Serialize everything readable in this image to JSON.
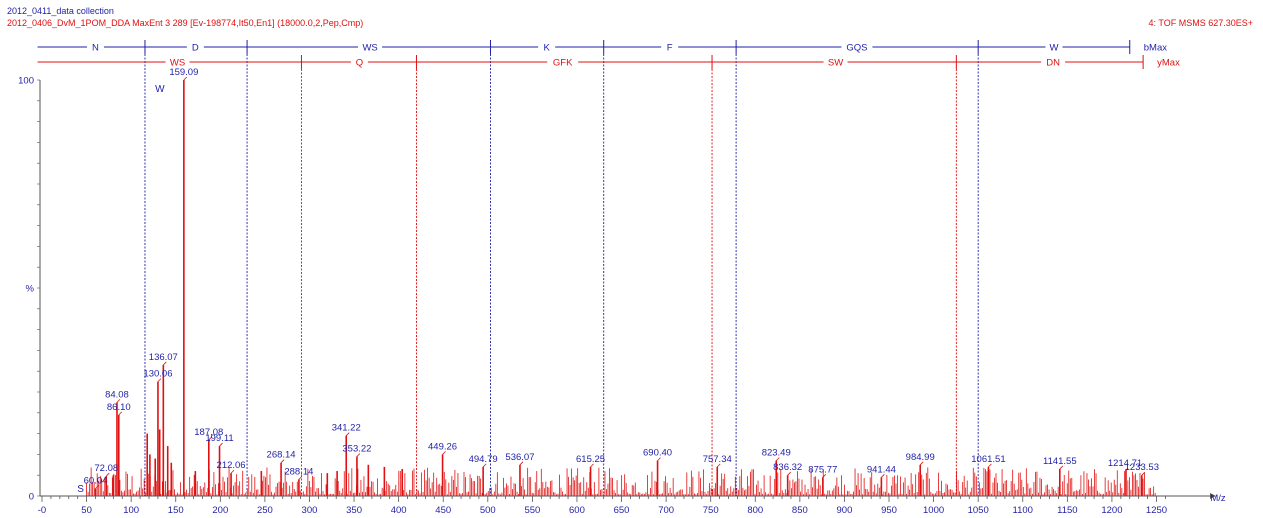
{
  "header": {
    "line1": "2012_0411_data collection",
    "line2": "2012_0406_DvM_1POM_DDA    MaxEnt 3  289 [Ev-198774,It50,En1] (18000.0,2,Pep,Cmp)",
    "right": "4: TOF MSMS 627.30ES+"
  },
  "colors": {
    "blue": "#1f1fa8",
    "red": "#e01010",
    "axis": "#555555"
  },
  "chart_data": {
    "type": "bar",
    "title": "",
    "xlabel": "M/z",
    "ylabel": "%",
    "xlim": [
      -5,
      1265
    ],
    "ylim": [
      0,
      100
    ],
    "x_ticks": [
      0,
      50,
      100,
      150,
      200,
      250,
      300,
      350,
      400,
      450,
      500,
      550,
      600,
      650,
      700,
      750,
      800,
      850,
      900,
      950,
      1000,
      1050,
      1100,
      1150,
      1200,
      1250
    ],
    "x_tick_labels": [
      "-0",
      "50",
      "100",
      "150",
      "200",
      "250",
      "300",
      "350",
      "400",
      "450",
      "500",
      "550",
      "600",
      "650",
      "700",
      "750",
      "800",
      "850",
      "900",
      "950",
      "1000",
      "1050",
      "1100",
      "1150",
      "1200",
      "1250"
    ],
    "y_ticks": [
      0,
      50,
      100
    ],
    "y_tick_labels": [
      "0",
      "%",
      "100"
    ],
    "b_series": {
      "name": "bMax",
      "fragment_mz": [
        115.5,
        230,
        503,
        630,
        778.5,
        1050
      ],
      "end_mz": [
        -5,
        1220
      ],
      "segment_labels": [
        {
          "text": "N",
          "mz": 60
        },
        {
          "text": "D",
          "mz": 172
        },
        {
          "text": "WS",
          "mz": 368
        },
        {
          "text": "K",
          "mz": 566
        },
        {
          "text": "F",
          "mz": 704
        },
        {
          "text": "GQS",
          "mz": 914
        },
        {
          "text": "W",
          "mz": 1135
        }
      ]
    },
    "y_series": {
      "name": "yMax",
      "fragment_mz": [
        291,
        420,
        751.5,
        1025.5
      ],
      "end_mz": [
        -5,
        1235
      ],
      "segment_labels": [
        {
          "text": "WS",
          "mz": 152
        },
        {
          "text": "Q",
          "mz": 356
        },
        {
          "text": "GFK",
          "mz": 584
        },
        {
          "text": "SW",
          "mz": 890
        },
        {
          "text": "DN",
          "mz": 1134
        }
      ]
    },
    "peaks": [
      {
        "mz": 60.04,
        "intensity": 1.8,
        "label": "60.04"
      },
      {
        "mz": 72.08,
        "intensity": 4.8,
        "label": "72.08"
      },
      {
        "mz": 84.08,
        "intensity": 22.5,
        "label": "84.08"
      },
      {
        "mz": 86.1,
        "intensity": 19.5,
        "label": "86.10"
      },
      {
        "mz": 130.06,
        "intensity": 27.5,
        "label": "130.06"
      },
      {
        "mz": 136.07,
        "intensity": 31.5,
        "label": "136.07"
      },
      {
        "mz": 159.09,
        "intensity": 100,
        "label": "159.09"
      },
      {
        "mz": 187.08,
        "intensity": 13.5,
        "label": "187.08"
      },
      {
        "mz": 199.11,
        "intensity": 12.0,
        "label": "199.11"
      },
      {
        "mz": 212.06,
        "intensity": 5.5,
        "label": "212.06"
      },
      {
        "mz": 268.14,
        "intensity": 8.0,
        "label": "268.14"
      },
      {
        "mz": 288.14,
        "intensity": 4.0,
        "label": "288.14"
      },
      {
        "mz": 341.22,
        "intensity": 14.5,
        "label": "341.22"
      },
      {
        "mz": 353.22,
        "intensity": 9.5,
        "label": "353.22"
      },
      {
        "mz": 449.26,
        "intensity": 10.0,
        "label": "449.26"
      },
      {
        "mz": 494.79,
        "intensity": 7.0,
        "label": "494.79"
      },
      {
        "mz": 536.07,
        "intensity": 7.5,
        "label": "536.07"
      },
      {
        "mz": 615.25,
        "intensity": 7.0,
        "label": "615.25"
      },
      {
        "mz": 690.4,
        "intensity": 8.5,
        "label": "690.40"
      },
      {
        "mz": 757.34,
        "intensity": 7.0,
        "label": "757.34"
      },
      {
        "mz": 823.49,
        "intensity": 8.5,
        "label": "823.49"
      },
      {
        "mz": 836.32,
        "intensity": 5.0,
        "label": "836.32"
      },
      {
        "mz": 875.77,
        "intensity": 4.5,
        "label": "875.77"
      },
      {
        "mz": 941.44,
        "intensity": 4.5,
        "label": "941.44"
      },
      {
        "mz": 984.99,
        "intensity": 7.5,
        "label": "984.99"
      },
      {
        "mz": 1061.51,
        "intensity": 7.0,
        "label": "1061.51"
      },
      {
        "mz": 1141.55,
        "intensity": 6.5,
        "label": "1141.55"
      },
      {
        "mz": 1214.71,
        "intensity": 6.0,
        "label": "1214.71"
      },
      {
        "mz": 1233.53,
        "intensity": 5.0,
        "label": "1233.53"
      },
      {
        "mz": 80.0,
        "intensity": 5.0,
        "label": ""
      },
      {
        "mz": 118.0,
        "intensity": 15.0,
        "label": ""
      },
      {
        "mz": 121.0,
        "intensity": 10.0,
        "label": ""
      },
      {
        "mz": 127.0,
        "intensity": 9.0,
        "label": ""
      },
      {
        "mz": 132.0,
        "intensity": 16.0,
        "label": ""
      },
      {
        "mz": 141.0,
        "intensity": 12.0,
        "label": ""
      },
      {
        "mz": 145.0,
        "intensity": 8.0,
        "label": ""
      },
      {
        "mz": 172.0,
        "intensity": 6.0,
        "label": ""
      },
      {
        "mz": 246.0,
        "intensity": 6.0,
        "label": ""
      },
      {
        "mz": 320.0,
        "intensity": 5.5,
        "label": ""
      },
      {
        "mz": 331.0,
        "intensity": 6.0,
        "label": ""
      },
      {
        "mz": 366.0,
        "intensity": 7.5,
        "label": ""
      },
      {
        "mz": 384.0,
        "intensity": 7.0,
        "label": ""
      },
      {
        "mz": 404.0,
        "intensity": 6.5,
        "label": ""
      }
    ],
    "annotations": [
      {
        "text": "W",
        "mz": 159.09,
        "intensity": 100
      },
      {
        "text": "S",
        "mz": 60.04,
        "intensity": 1.8
      }
    ]
  }
}
